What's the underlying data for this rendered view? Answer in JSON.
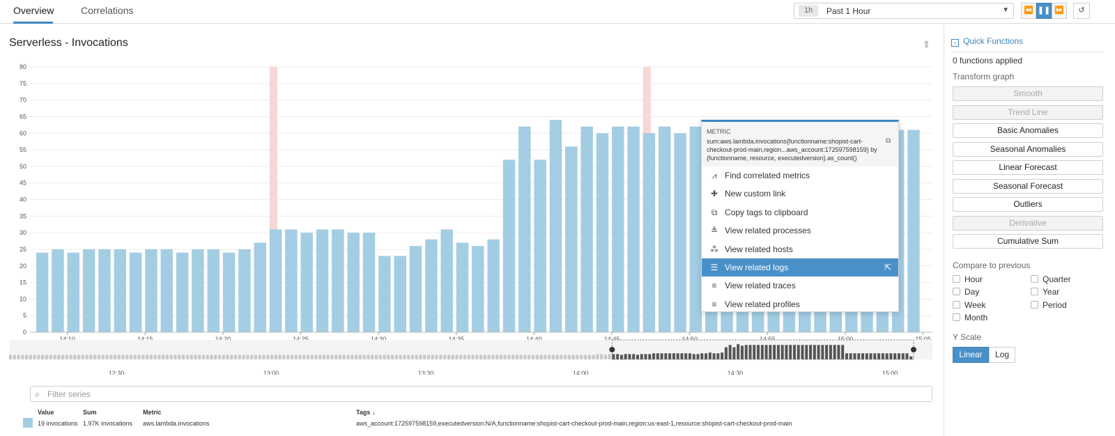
{
  "tabs": [
    {
      "label": "Overview",
      "active": true
    },
    {
      "label": "Correlations",
      "active": false
    }
  ],
  "time_selector": {
    "chip": "1h",
    "label": "Past 1 Hour"
  },
  "timeline_controls": [
    {
      "name": "rewind-icon",
      "glyph": "⏪"
    },
    {
      "name": "pause-icon",
      "glyph": "❚❚",
      "active": true
    },
    {
      "name": "fast-forward-icon",
      "glyph": "⏩"
    },
    {
      "name": "reset-icon",
      "glyph": "↺"
    }
  ],
  "panel": {
    "title": "Serverless - Invocations",
    "share_icon": "share-icon"
  },
  "chart_data": {
    "type": "bar",
    "title": "Serverless - Invocations",
    "x": [
      "14:08",
      "14:09",
      "14:10",
      "14:11",
      "14:12",
      "14:13",
      "14:14",
      "14:15",
      "14:16",
      "14:17",
      "14:18",
      "14:19",
      "14:20",
      "14:21",
      "14:22",
      "14:23",
      "14:24",
      "14:25",
      "14:26",
      "14:27",
      "14:28",
      "14:29",
      "14:30",
      "14:31",
      "14:32",
      "14:33",
      "14:34",
      "14:35",
      "14:36",
      "14:37",
      "14:38",
      "14:39",
      "14:40",
      "14:41",
      "14:42",
      "14:43",
      "14:44",
      "14:45",
      "14:46",
      "14:47",
      "14:48",
      "14:49",
      "14:50",
      "14:51",
      "14:52",
      "14:53",
      "14:54",
      "14:55",
      "14:56",
      "14:57",
      "14:58",
      "14:59",
      "15:00",
      "15:01",
      "15:02",
      "15:03",
      "15:04"
    ],
    "values": [
      24,
      25,
      24,
      25,
      25,
      25,
      24,
      25,
      25,
      24,
      25,
      25,
      24,
      25,
      27,
      31,
      31,
      30,
      31,
      31,
      30,
      30,
      23,
      23,
      26,
      28,
      31,
      27,
      26,
      28,
      52,
      62,
      52,
      64,
      56,
      62,
      60,
      62,
      62,
      60,
      62,
      60,
      62,
      62,
      61,
      61,
      61,
      61,
      61,
      61,
      61,
      61,
      61,
      61,
      61,
      61,
      61
    ],
    "x_ticks": [
      "14:10",
      "14:15",
      "14:20",
      "14:25",
      "14:30",
      "14:35",
      "14:40",
      "14:45",
      "14:50",
      "14:55",
      "15:00",
      "15:05"
    ],
    "ylim": [
      0,
      80
    ],
    "y_ticks": [
      0,
      5,
      10,
      15,
      20,
      25,
      30,
      35,
      40,
      45,
      50,
      55,
      60,
      65,
      70,
      75,
      80
    ],
    "grid": true,
    "bar_color": "#a3cde3",
    "event_markers": [
      "14:23",
      "14:47"
    ],
    "event_color": "#f8d7d7"
  },
  "navigator": {
    "ticks": [
      "12:30",
      "13:00",
      "13:30",
      "14:00",
      "14:30",
      "15:00"
    ],
    "values": [
      6,
      6,
      6,
      6,
      6,
      6,
      6,
      6,
      6,
      6,
      6,
      6,
      6,
      6,
      6,
      6,
      6,
      6,
      6,
      6,
      6,
      6,
      6,
      6,
      6,
      6,
      6,
      6,
      6,
      6,
      6,
      6,
      6,
      6,
      6,
      6,
      6,
      6,
      6,
      6,
      6,
      6,
      6,
      6,
      6,
      6,
      6,
      6,
      6,
      6,
      6,
      6,
      6,
      6,
      6,
      6,
      6,
      6,
      6,
      6,
      6,
      6,
      6,
      6,
      6,
      6,
      6,
      6,
      6,
      6,
      6,
      6,
      6,
      6,
      6,
      6,
      6,
      6,
      6,
      6,
      6,
      6,
      6,
      6,
      6,
      6,
      6,
      6,
      6,
      6,
      6,
      6,
      6,
      6,
      6,
      6,
      6,
      6,
      6,
      6,
      6,
      6,
      6,
      6,
      6,
      6,
      6,
      6,
      6,
      6,
      6,
      6,
      6,
      6,
      6,
      6,
      6,
      6,
      6,
      6,
      6,
      6,
      6,
      6,
      6,
      6,
      6,
      6,
      6,
      6,
      6,
      6,
      6,
      6,
      6,
      6,
      6,
      6,
      6,
      6,
      6,
      6,
      6,
      6,
      6,
      6,
      7,
      7,
      6,
      7,
      7,
      7,
      6,
      7,
      7,
      7,
      6,
      7,
      7,
      7,
      8,
      8,
      8,
      8,
      8,
      8,
      8,
      8,
      8,
      8,
      7,
      7,
      8,
      8,
      9,
      8,
      8,
      9,
      16,
      19,
      16,
      20,
      18,
      19,
      19,
      19,
      19,
      19,
      19,
      19,
      19,
      19,
      19,
      19,
      19,
      19,
      19,
      19,
      19,
      19,
      19,
      19,
      19,
      19,
      19,
      19,
      19,
      19,
      8,
      8,
      8,
      8,
      8,
      8,
      8,
      8,
      8,
      8,
      8,
      8,
      8,
      8,
      8,
      8,
      4
    ]
  },
  "context_menu": {
    "header_label": "METRIC",
    "header_value": "sum:aws.lambda.invocations{functionname:shopist-cart-checkout-prod-main,region...aws_account:172597598159} by {functionname, resource, executedversion}.as_count()",
    "copy_icon": "copy-icon",
    "items": [
      {
        "label": "Find correlated metrics",
        "icon": "⩘",
        "icon_name": "correlated-metrics-icon"
      },
      {
        "label": "New custom link",
        "icon": "✚",
        "icon_name": "plus-icon"
      },
      {
        "label": "Copy tags to clipboard",
        "icon": "⧉",
        "icon_name": "copy-tags-icon"
      },
      {
        "label": "View related processes",
        "icon": "≜",
        "icon_name": "processes-icon"
      },
      {
        "label": "View related hosts",
        "icon": "⁂",
        "icon_name": "hosts-icon"
      },
      {
        "label": "View related logs",
        "icon": "☰",
        "icon_name": "logs-icon",
        "selected": true
      },
      {
        "label": "View related traces",
        "icon": "≡",
        "icon_name": "traces-icon"
      },
      {
        "label": "View related profiles",
        "icon": "≡",
        "icon_name": "profiles-icon"
      }
    ],
    "external_icon": "⇱"
  },
  "filter": {
    "placeholder": "Filter series",
    "value": ""
  },
  "legend": {
    "headers": {
      "value": "Value",
      "sum": "Sum",
      "metric": "Metric",
      "tags": "Tags ↓"
    },
    "row": {
      "value": "19 invocations",
      "sum": "1.97K invocations",
      "metric": "aws.lambda.invocations",
      "tags": "aws_account:172597598159,executedversion:N/A,functionname:shopist-cart-checkout-prod-main,region:us-east-1,resource:shopist-cart-checkout-prod-main",
      "color": "#a3cde3"
    }
  },
  "sidebar": {
    "title": "Quick Functions",
    "applied": "0 functions applied",
    "transform_label": "Transform graph",
    "buttons": [
      {
        "label": "Smooth",
        "disabled": true
      },
      {
        "label": "Trend Line",
        "disabled": true
      },
      {
        "label": "Basic Anomalies",
        "disabled": false
      },
      {
        "label": "Seasonal Anomalies",
        "disabled": false
      },
      {
        "label": "Linear Forecast",
        "disabled": false
      },
      {
        "label": "Seasonal Forecast",
        "disabled": false
      },
      {
        "label": "Outliers",
        "disabled": false
      },
      {
        "label": "Derivative",
        "disabled": true
      },
      {
        "label": "Cumulative Sum",
        "disabled": false
      }
    ],
    "compare_label": "Compare to previous",
    "compare": [
      "Hour",
      "Quarter",
      "Day",
      "Year",
      "Week",
      "Period",
      "Month"
    ],
    "yscale_label": "Y Scale",
    "yscale": [
      {
        "label": "Linear",
        "active": true
      },
      {
        "label": "Log",
        "active": false
      }
    ]
  }
}
